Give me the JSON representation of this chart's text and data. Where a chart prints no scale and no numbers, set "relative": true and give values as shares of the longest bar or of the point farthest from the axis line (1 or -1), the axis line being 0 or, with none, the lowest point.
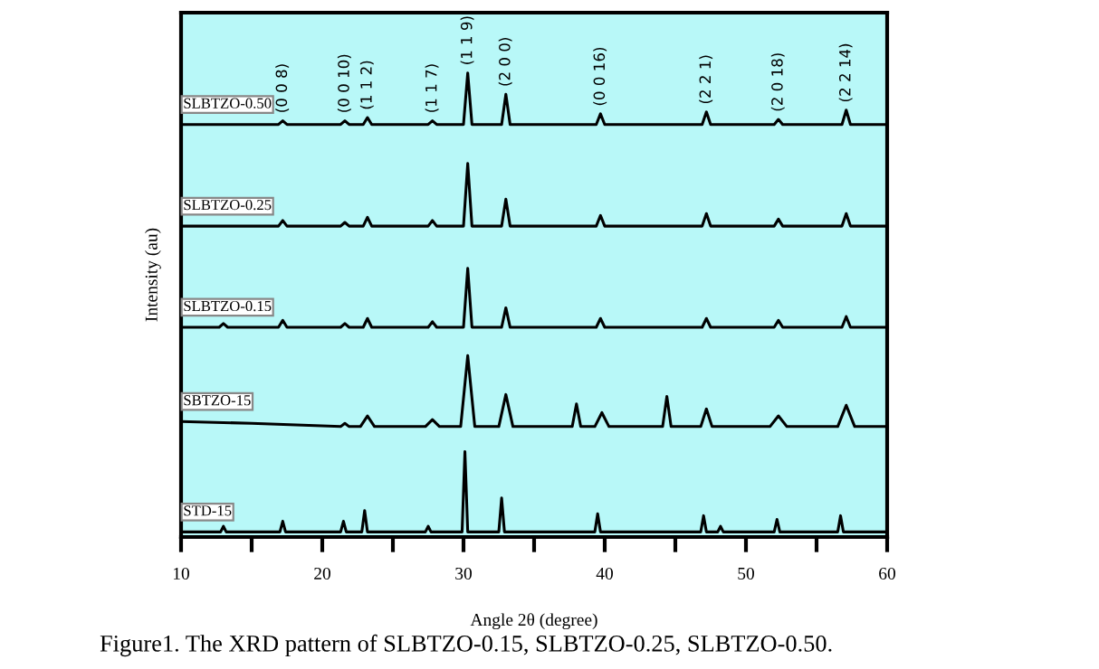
{
  "chart_data": {
    "type": "line",
    "relative": true,
    "xlabel": "Angle 2θ (degree)",
    "ylabel": "Intensity (au)",
    "xlim": [
      10,
      60
    ],
    "xticks": [
      10,
      {
        "value": 15,
        "label": null
      },
      20,
      {
        "value": 25,
        "label": null
      },
      30,
      {
        "value": 35,
        "label": null
      },
      40,
      {
        "value": 45,
        "label": null
      },
      50,
      {
        "value": 55,
        "label": null
      },
      60
    ],
    "tick_labels": "x",
    "grid": false,
    "marker": "none",
    "line_style": "solid",
    "series": [
      {
        "name": "SLBTZO-0.50",
        "color": "#000000",
        "x": [
          10,
          16.9,
          17.2,
          17.5,
          21.3,
          21.6,
          21.9,
          22.9,
          23.2,
          23.5,
          27.5,
          27.8,
          28.1,
          30.0,
          30.3,
          30.6,
          32.7,
          33.0,
          33.3,
          39.4,
          39.7,
          40.0,
          46.9,
          47.2,
          47.5,
          52.0,
          52.3,
          52.6,
          56.8,
          57.1,
          57.4,
          60
        ],
        "values": [
          0.889,
          0.889,
          0.897,
          0.889,
          0.889,
          0.897,
          0.889,
          0.889,
          0.904,
          0.889,
          0.889,
          0.897,
          0.889,
          0.889,
          1.0,
          0.889,
          0.889,
          0.954,
          0.889,
          0.889,
          0.912,
          0.889,
          0.889,
          0.916,
          0.889,
          0.889,
          0.9,
          0.889,
          0.889,
          0.92,
          0.889,
          0.889
        ]
      },
      {
        "name": "SLBTZO-0.25",
        "color": "#000000",
        "x": [
          10,
          16.9,
          17.2,
          17.5,
          21.3,
          21.6,
          21.9,
          22.9,
          23.2,
          23.5,
          27.5,
          27.8,
          28.1,
          30.0,
          30.3,
          30.6,
          32.7,
          33.0,
          33.3,
          39.4,
          39.7,
          40.0,
          46.9,
          47.2,
          47.5,
          52.0,
          52.3,
          52.6,
          56.8,
          57.1,
          57.4,
          60
        ],
        "values": [
          0.67,
          0.67,
          0.682,
          0.67,
          0.67,
          0.678,
          0.67,
          0.67,
          0.689,
          0.67,
          0.67,
          0.682,
          0.67,
          0.67,
          0.805,
          0.67,
          0.67,
          0.728,
          0.67,
          0.67,
          0.693,
          0.67,
          0.67,
          0.697,
          0.67,
          0.67,
          0.685,
          0.67,
          0.67,
          0.697,
          0.67,
          0.67
        ]
      },
      {
        "name": "SLBTZO-0.15",
        "color": "#000000",
        "x": [
          10,
          12.7,
          13.0,
          13.3,
          16.9,
          17.2,
          17.5,
          21.3,
          21.6,
          21.9,
          22.9,
          23.2,
          23.5,
          27.5,
          27.8,
          28.1,
          30.0,
          30.3,
          30.6,
          32.7,
          33.0,
          33.3,
          39.4,
          39.7,
          40.0,
          46.9,
          47.2,
          47.5,
          52.0,
          52.3,
          52.6,
          56.8,
          57.1,
          57.4,
          60
        ],
        "values": [
          0.452,
          0.452,
          0.46,
          0.452,
          0.452,
          0.467,
          0.452,
          0.452,
          0.46,
          0.452,
          0.452,
          0.471,
          0.452,
          0.452,
          0.464,
          0.452,
          0.452,
          0.579,
          0.452,
          0.452,
          0.494,
          0.452,
          0.452,
          0.471,
          0.452,
          0.452,
          0.471,
          0.452,
          0.452,
          0.467,
          0.452,
          0.452,
          0.475,
          0.452,
          0.452
        ]
      },
      {
        "name": "SBTZO-15",
        "color": "#000000",
        "x": [
          10,
          15,
          21.3,
          21.6,
          21.9,
          22.7,
          23.2,
          23.7,
          27.3,
          27.8,
          28.3,
          29.8,
          30.3,
          30.8,
          32.5,
          33.0,
          33.5,
          37.7,
          38.0,
          38.3,
          39.3,
          39.8,
          40.3,
          44.1,
          44.4,
          44.7,
          46.8,
          47.2,
          47.6,
          51.7,
          52.3,
          52.9,
          56.5,
          57.1,
          57.7,
          60
        ],
        "values": [
          0.249,
          0.245,
          0.238,
          0.245,
          0.238,
          0.238,
          0.261,
          0.238,
          0.238,
          0.253,
          0.238,
          0.238,
          0.391,
          0.238,
          0.238,
          0.307,
          0.238,
          0.238,
          0.287,
          0.238,
          0.238,
          0.268,
          0.238,
          0.238,
          0.303,
          0.238,
          0.238,
          0.276,
          0.238,
          0.238,
          0.261,
          0.238,
          0.238,
          0.284,
          0.238,
          0.238
        ]
      },
      {
        "name": "STD-15",
        "color": "#000000",
        "x": [
          10,
          12.8,
          13.0,
          13.2,
          17.0,
          17.2,
          17.4,
          21.3,
          21.5,
          21.7,
          22.8,
          23.0,
          23.2,
          27.3,
          27.5,
          27.7,
          29.9,
          30.1,
          30.3,
          32.5,
          32.7,
          32.9,
          39.3,
          39.5,
          39.7,
          46.8,
          47.0,
          47.2,
          48.0,
          48.2,
          48.4,
          52.0,
          52.2,
          52.4,
          56.5,
          56.7,
          56.9,
          60
        ],
        "values": [
          0.011,
          0.011,
          0.023,
          0.011,
          0.011,
          0.034,
          0.011,
          0.011,
          0.034,
          0.011,
          0.011,
          0.057,
          0.011,
          0.011,
          0.023,
          0.011,
          0.011,
          0.184,
          0.011,
          0.011,
          0.084,
          0.011,
          0.011,
          0.05,
          0.011,
          0.011,
          0.046,
          0.011,
          0.011,
          0.023,
          0.011,
          0.011,
          0.038,
          0.011,
          0.011,
          0.046,
          0.011,
          0.011
        ]
      }
    ],
    "annotations": [
      {
        "text": "(0 0 8)",
        "x": 17.2,
        "y": 0.897
      },
      {
        "text": "(0 0 10)",
        "x": 21.6,
        "y": 0.897
      },
      {
        "text": "(1 1 2)",
        "x": 23.2,
        "y": 0.904
      },
      {
        "text": "(1 1 7)",
        "x": 27.8,
        "y": 0.897
      },
      {
        "text": "(1 1 9)",
        "x": 30.3,
        "y": 1.0
      },
      {
        "text": "(2 0 0)",
        "x": 33.0,
        "y": 0.954
      },
      {
        "text": "(0 0 16)",
        "x": 39.7,
        "y": 0.912
      },
      {
        "text": "(2 2 1)",
        "x": 47.2,
        "y": 0.916
      },
      {
        "text": "(2 0 18)",
        "x": 52.3,
        "y": 0.9
      },
      {
        "text": "(2 2 14)",
        "x": 57.1,
        "y": 0.92
      },
      "Figure1. The XRD pattern of SLBTZO-0.15, SLBTZO-0.25, SLBTZO-0.50."
    ]
  }
}
